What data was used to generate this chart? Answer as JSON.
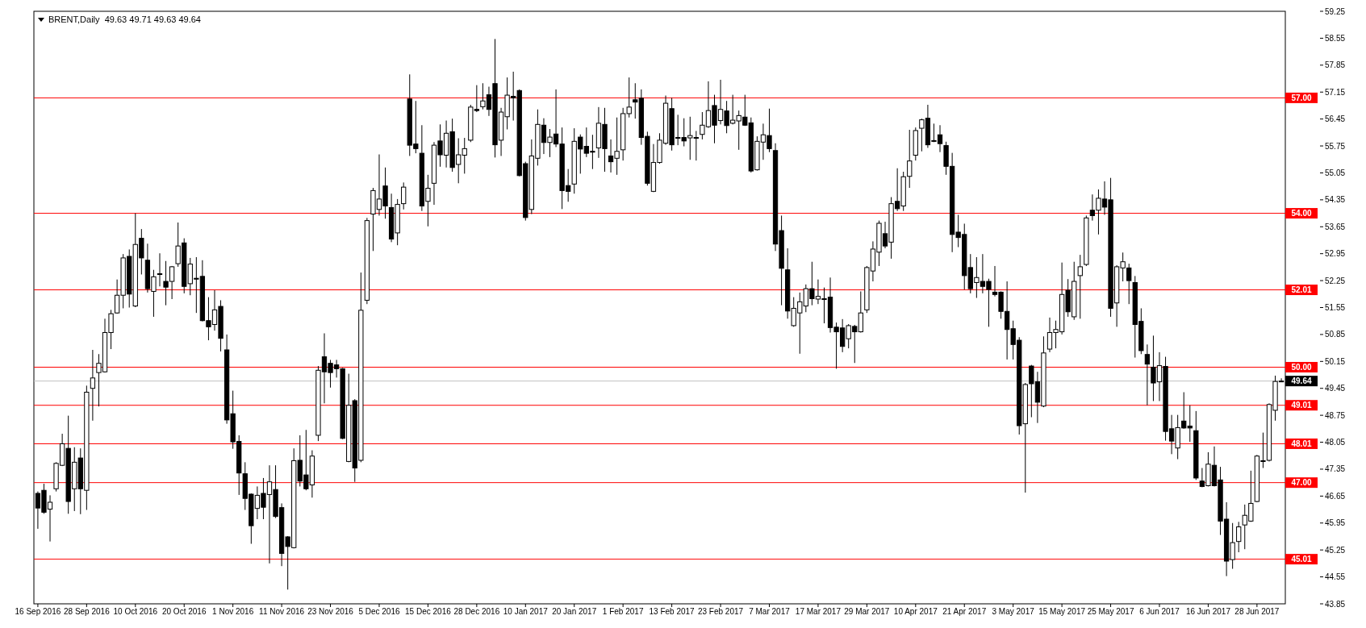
{
  "chart_data": {
    "type": "candlestick",
    "title": "BRENT,Daily  49.63 49.71 49.63 49.64",
    "categories": [
      "16 Sep 2016",
      null,
      null,
      null,
      null,
      null,
      null,
      null,
      "28 Sep 2016",
      null,
      null,
      null,
      null,
      null,
      null,
      null,
      "10 Oct 2016",
      null,
      null,
      null,
      null,
      null,
      null,
      null,
      "20 Oct 2016",
      null,
      null,
      null,
      null,
      null,
      null,
      null,
      "1 Nov 2016",
      null,
      null,
      null,
      null,
      null,
      null,
      null,
      "11 Nov 2016",
      null,
      null,
      null,
      null,
      null,
      null,
      null,
      "23 Nov 2016",
      null,
      null,
      null,
      null,
      null,
      null,
      null,
      "5 Dec 2016",
      null,
      null,
      null,
      null,
      null,
      null,
      null,
      "15 Dec 2016",
      null,
      null,
      null,
      null,
      null,
      null,
      null,
      "28 Dec 2016",
      null,
      null,
      null,
      null,
      null,
      null,
      null,
      "10 Jan 2017",
      null,
      null,
      null,
      null,
      null,
      null,
      null,
      "20 Jan 2017",
      null,
      null,
      null,
      null,
      null,
      null,
      null,
      "1 Feb 2017",
      null,
      null,
      null,
      null,
      null,
      null,
      null,
      "13 Feb 2017",
      null,
      null,
      null,
      null,
      null,
      null,
      null,
      "23 Feb 2017",
      null,
      null,
      null,
      null,
      null,
      null,
      null,
      "7 Mar 2017",
      null,
      null,
      null,
      null,
      null,
      null,
      null,
      "17 Mar 2017",
      null,
      null,
      null,
      null,
      null,
      null,
      null,
      "29 Mar 2017",
      null,
      null,
      null,
      null,
      null,
      null,
      null,
      "10 Apr 2017",
      null,
      null,
      null,
      null,
      null,
      null,
      null,
      "21 Apr 2017",
      null,
      null,
      null,
      null,
      null,
      null,
      null,
      "3 May 2017",
      null,
      null,
      null,
      null,
      null,
      null,
      null,
      "15 May 2017",
      null,
      null,
      null,
      null,
      null,
      null,
      null,
      "25 May 2017",
      null,
      null,
      null,
      null,
      null,
      null,
      null,
      "6 Jun 2017",
      null,
      null,
      null,
      null,
      null,
      null,
      null,
      "16 Jun 2017",
      null,
      null,
      null,
      null,
      null,
      null,
      null,
      "28 Jun 2017",
      null,
      null,
      null,
      null
    ],
    "ohlc": [
      [
        46.72,
        46.77,
        45.8,
        46.34
      ],
      [
        46.8,
        46.97,
        46.19,
        46.23
      ],
      [
        46.31,
        46.67,
        45.47,
        46.49
      ],
      [
        46.84,
        47.53,
        46.77,
        47.5
      ],
      [
        47.45,
        48.27,
        47.43,
        48.01
      ],
      [
        47.89,
        48.74,
        46.19,
        46.51
      ],
      [
        46.84,
        47.92,
        46.26,
        47.53
      ],
      [
        47.64,
        47.89,
        46.18,
        46.84
      ],
      [
        46.8,
        49.52,
        46.29,
        49.35
      ],
      [
        49.45,
        50.45,
        48.61,
        49.72
      ],
      [
        49.86,
        50.34,
        48.98,
        50.1
      ],
      [
        49.88,
        51.26,
        49.86,
        50.9
      ],
      [
        50.9,
        51.49,
        50.47,
        51.39
      ],
      [
        51.41,
        52.28,
        51.39,
        51.87
      ],
      [
        51.87,
        52.94,
        51.53,
        52.84
      ],
      [
        52.88,
        53.06,
        51.55,
        51.9
      ],
      [
        51.59,
        54.0,
        51.56,
        53.19
      ],
      [
        53.35,
        53.59,
        52.41,
        52.84
      ],
      [
        52.78,
        53.21,
        51.94,
        52.04
      ],
      [
        51.97,
        52.53,
        51.31,
        52.35
      ],
      [
        52.43,
        52.96,
        52.1,
        52.41
      ],
      [
        52.23,
        52.76,
        51.61,
        52.08
      ],
      [
        52.23,
        52.63,
        51.77,
        52.61
      ],
      [
        52.69,
        53.76,
        52.61,
        53.15
      ],
      [
        53.23,
        53.35,
        51.92,
        52.1
      ],
      [
        52.17,
        52.84,
        51.87,
        52.68
      ],
      [
        52.31,
        52.86,
        51.41,
        52.29
      ],
      [
        52.36,
        52.78,
        51.19,
        51.21
      ],
      [
        51.21,
        51.82,
        50.7,
        51.05
      ],
      [
        51.11,
        52.0,
        50.95,
        51.49
      ],
      [
        51.58,
        51.74,
        50.41,
        50.75
      ],
      [
        50.45,
        50.85,
        48.53,
        48.63
      ],
      [
        48.79,
        49.39,
        47.88,
        48.06
      ],
      [
        48.07,
        48.23,
        46.68,
        47.25
      ],
      [
        47.23,
        47.53,
        46.29,
        46.59
      ],
      [
        46.7,
        46.72,
        45.41,
        45.88
      ],
      [
        46.33,
        46.9,
        46.05,
        46.67
      ],
      [
        46.72,
        47.12,
        46.05,
        46.36
      ],
      [
        46.69,
        47.45,
        44.9,
        47.02
      ],
      [
        46.82,
        47.45,
        46.08,
        46.12
      ],
      [
        46.35,
        46.46,
        44.83,
        45.16
      ],
      [
        45.59,
        45.61,
        44.22,
        45.34
      ],
      [
        45.31,
        47.89,
        45.29,
        47.57
      ],
      [
        47.58,
        48.23,
        46.9,
        47.04
      ],
      [
        47.2,
        48.37,
        46.8,
        46.84
      ],
      [
        46.94,
        47.84,
        46.61,
        47.69
      ],
      [
        48.23,
        50.03,
        48.08,
        49.92
      ],
      [
        50.27,
        50.88,
        49.06,
        49.88
      ],
      [
        50.1,
        50.19,
        49.47,
        49.86
      ],
      [
        50.06,
        50.19,
        49.73,
        49.96
      ],
      [
        49.96,
        49.98,
        48.13,
        48.15
      ],
      [
        47.55,
        49.83,
        47.53,
        49.01
      ],
      [
        49.13,
        49.17,
        47.02,
        47.38
      ],
      [
        47.58,
        52.46,
        47.53,
        51.48
      ],
      [
        51.74,
        53.88,
        51.64,
        53.81
      ],
      [
        53.98,
        54.66,
        53.02,
        54.59
      ],
      [
        54.1,
        55.53,
        53.94,
        54.37
      ],
      [
        54.71,
        55.19,
        53.86,
        54.19
      ],
      [
        54.15,
        54.51,
        53.25,
        53.33
      ],
      [
        53.49,
        54.37,
        53.17,
        54.23
      ],
      [
        54.25,
        54.8,
        54.1,
        54.68
      ],
      [
        56.97,
        57.61,
        55.49,
        55.77
      ],
      [
        55.8,
        56.92,
        55.56,
        55.68
      ],
      [
        55.56,
        56.29,
        54.06,
        54.19
      ],
      [
        54.31,
        55.0,
        53.66,
        54.65
      ],
      [
        54.78,
        55.85,
        54.22,
        55.77
      ],
      [
        55.88,
        56.31,
        55.21,
        55.52
      ],
      [
        55.51,
        56.41,
        55.19,
        56.08
      ],
      [
        56.12,
        56.46,
        55.08,
        55.19
      ],
      [
        55.27,
        55.95,
        54.78,
        55.52
      ],
      [
        55.51,
        55.96,
        55.03,
        55.68
      ],
      [
        55.9,
        56.82,
        55.85,
        56.76
      ],
      [
        56.7,
        57.33,
        56.63,
        56.67
      ],
      [
        56.77,
        57.38,
        56.7,
        56.92
      ],
      [
        57.08,
        57.29,
        56.53,
        56.7
      ],
      [
        57.37,
        58.53,
        55.45,
        55.78
      ],
      [
        55.9,
        56.74,
        55.49,
        56.63
      ],
      [
        56.51,
        57.53,
        56.18,
        57.07
      ],
      [
        57.04,
        57.68,
        56.41,
        57.0
      ],
      [
        57.19,
        57.22,
        54.96,
        54.98
      ],
      [
        55.29,
        55.34,
        53.81,
        53.89
      ],
      [
        54.1,
        55.92,
        53.98,
        55.49
      ],
      [
        55.43,
        56.7,
        55.24,
        56.31
      ],
      [
        56.29,
        56.47,
        55.54,
        55.84
      ],
      [
        55.84,
        56.19,
        55.46,
        55.98
      ],
      [
        56.06,
        57.22,
        55.72,
        55.8
      ],
      [
        55.8,
        56.23,
        54.11,
        54.59
      ],
      [
        54.72,
        55.15,
        54.3,
        54.57
      ],
      [
        54.76,
        56.21,
        54.51,
        55.87
      ],
      [
        55.98,
        56.05,
        55.03,
        55.67
      ],
      [
        55.74,
        56.23,
        55.46,
        55.56
      ],
      [
        55.61,
        56.04,
        55.15,
        55.59
      ],
      [
        55.7,
        56.76,
        55.44,
        56.34
      ],
      [
        56.31,
        56.74,
        55.08,
        55.68
      ],
      [
        55.49,
        55.92,
        55.06,
        55.34
      ],
      [
        55.43,
        56.49,
        55.0,
        55.61
      ],
      [
        55.65,
        56.74,
        55.37,
        56.59
      ],
      [
        56.59,
        57.53,
        56.49,
        56.76
      ],
      [
        56.95,
        57.38,
        56.46,
        56.89
      ],
      [
        56.99,
        57.22,
        55.78,
        55.97
      ],
      [
        56.0,
        56.12,
        54.72,
        54.78
      ],
      [
        54.57,
        55.8,
        54.55,
        55.32
      ],
      [
        55.32,
        56.08,
        55.29,
        55.9
      ],
      [
        55.82,
        57.06,
        55.78,
        56.86
      ],
      [
        56.72,
        57.0,
        55.63,
        55.78
      ],
      [
        55.97,
        56.56,
        55.77,
        55.95
      ],
      [
        55.97,
        56.47,
        55.74,
        55.88
      ],
      [
        55.96,
        56.51,
        55.39,
        56.02
      ],
      [
        55.97,
        56.14,
        55.37,
        55.95
      ],
      [
        56.05,
        56.63,
        55.92,
        56.29
      ],
      [
        56.25,
        57.43,
        56.22,
        56.67
      ],
      [
        56.8,
        57.08,
        55.82,
        56.29
      ],
      [
        56.41,
        57.47,
        56.31,
        56.7
      ],
      [
        56.66,
        56.92,
        56.08,
        56.28
      ],
      [
        56.34,
        57.08,
        56.31,
        56.42
      ],
      [
        56.4,
        56.67,
        55.65,
        56.54
      ],
      [
        56.5,
        57.08,
        56.27,
        56.29
      ],
      [
        56.35,
        56.49,
        55.06,
        55.1
      ],
      [
        55.13,
        56.0,
        55.11,
        55.87
      ],
      [
        55.85,
        56.33,
        55.39,
        56.04
      ],
      [
        56.02,
        56.72,
        55.59,
        55.68
      ],
      [
        55.63,
        55.82,
        53.02,
        53.2
      ],
      [
        53.55,
        53.94,
        51.61,
        52.57
      ],
      [
        52.53,
        53.09,
        51.26,
        51.46
      ],
      [
        51.08,
        51.82,
        51.05,
        51.53
      ],
      [
        51.41,
        51.94,
        50.35,
        51.7
      ],
      [
        51.59,
        52.15,
        51.43,
        52.04
      ],
      [
        52.04,
        52.74,
        51.61,
        51.78
      ],
      [
        51.77,
        52.28,
        51.64,
        51.84
      ],
      [
        51.78,
        52.07,
        51.14,
        51.76
      ],
      [
        51.82,
        52.33,
        50.9,
        51.03
      ],
      [
        51.04,
        51.16,
        49.96,
        50.92
      ],
      [
        51.02,
        51.25,
        50.39,
        50.54
      ],
      [
        50.74,
        51.12,
        50.49,
        51.08
      ],
      [
        51.06,
        51.1,
        50.11,
        50.92
      ],
      [
        50.92,
        51.97,
        50.9,
        51.41
      ],
      [
        51.49,
        52.63,
        51.41,
        52.59
      ],
      [
        52.5,
        53.27,
        52.23,
        53.07
      ],
      [
        52.99,
        53.81,
        52.63,
        53.74
      ],
      [
        53.47,
        53.78,
        53.09,
        53.15
      ],
      [
        53.25,
        54.42,
        52.82,
        54.25
      ],
      [
        54.31,
        55.17,
        54.06,
        54.12
      ],
      [
        54.19,
        55.08,
        54.06,
        54.95
      ],
      [
        54.96,
        56.17,
        54.66,
        55.36
      ],
      [
        55.51,
        56.23,
        55.37,
        56.15
      ],
      [
        56.21,
        56.46,
        55.61,
        56.43
      ],
      [
        56.47,
        56.82,
        55.7,
        55.78
      ],
      [
        55.89,
        56.33,
        55.85,
        55.87
      ],
      [
        56.04,
        56.29,
        55.59,
        55.81
      ],
      [
        55.76,
        55.86,
        55.0,
        55.22
      ],
      [
        55.22,
        55.57,
        52.99,
        53.45
      ],
      [
        53.51,
        53.96,
        53.12,
        53.37
      ],
      [
        53.45,
        53.73,
        52.02,
        52.38
      ],
      [
        52.59,
        52.94,
        51.92,
        52.04
      ],
      [
        52.2,
        52.86,
        51.8,
        52.33
      ],
      [
        52.23,
        52.94,
        51.92,
        52.1
      ],
      [
        52.23,
        52.3,
        51.05,
        52.02
      ],
      [
        51.95,
        52.63,
        51.84,
        51.89
      ],
      [
        51.95,
        51.97,
        51.26,
        51.45
      ],
      [
        51.45,
        52.23,
        50.2,
        50.98
      ],
      [
        51.0,
        51.21,
        50.2,
        50.59
      ],
      [
        50.7,
        50.78,
        48.25,
        48.48
      ],
      [
        48.53,
        49.59,
        46.74,
        49.55
      ],
      [
        50.03,
        50.06,
        48.7,
        49.57
      ],
      [
        49.62,
        49.88,
        48.55,
        49.09
      ],
      [
        48.99,
        50.8,
        48.96,
        50.37
      ],
      [
        50.47,
        51.29,
        50.39,
        50.9
      ],
      [
        50.9,
        51.21,
        50.49,
        50.98
      ],
      [
        50.92,
        52.72,
        50.85,
        51.89
      ],
      [
        52.0,
        52.29,
        51.31,
        51.44
      ],
      [
        51.31,
        52.74,
        51.23,
        52.23
      ],
      [
        52.38,
        52.92,
        51.26,
        52.61
      ],
      [
        52.67,
        53.94,
        52.63,
        53.88
      ],
      [
        54.08,
        54.49,
        53.81,
        53.94
      ],
      [
        54.08,
        54.62,
        53.45,
        54.39
      ],
      [
        54.37,
        54.83,
        53.96,
        54.16
      ],
      [
        54.35,
        54.92,
        51.31,
        51.53
      ],
      [
        51.67,
        52.65,
        51.05,
        52.61
      ],
      [
        52.58,
        52.98,
        52.23,
        52.74
      ],
      [
        52.58,
        52.69,
        51.64,
        52.25
      ],
      [
        52.2,
        52.37,
        50.25,
        51.11
      ],
      [
        51.19,
        51.53,
        50.34,
        50.43
      ],
      [
        50.33,
        50.59,
        49.01,
        50.08
      ],
      [
        50.0,
        50.82,
        49.12,
        49.59
      ],
      [
        49.62,
        50.39,
        49.12,
        50.04
      ],
      [
        50.02,
        50.27,
        48.09,
        48.33
      ],
      [
        48.4,
        48.76,
        47.74,
        48.08
      ],
      [
        47.9,
        48.76,
        47.61,
        48.43
      ],
      [
        48.6,
        49.35,
        48.4,
        48.42
      ],
      [
        48.47,
        49.01,
        48.06,
        48.42
      ],
      [
        48.35,
        48.86,
        47.07,
        47.12
      ],
      [
        47.04,
        47.38,
        46.88,
        46.9
      ],
      [
        46.92,
        47.79,
        46.9,
        47.48
      ],
      [
        47.45,
        47.94,
        46.9,
        46.92
      ],
      [
        47.07,
        47.41,
        45.64,
        46.0
      ],
      [
        46.05,
        46.49,
        44.57,
        44.96
      ],
      [
        45.0,
        45.95,
        44.76,
        45.44
      ],
      [
        45.47,
        45.98,
        45.19,
        45.85
      ],
      [
        45.9,
        46.43,
        45.27,
        46.15
      ],
      [
        46.0,
        47.31,
        45.98,
        46.46
      ],
      [
        46.51,
        47.72,
        46.49,
        47.69
      ],
      [
        47.57,
        48.3,
        47.38,
        47.55
      ],
      [
        47.58,
        49.06,
        47.55,
        49.03
      ],
      [
        48.88,
        49.78,
        48.61,
        49.63
      ],
      [
        49.63,
        49.71,
        49.63,
        49.64
      ]
    ],
    "ylim": [
      43.85,
      59.25
    ],
    "yticks": [
      59.25,
      58.55,
      57.85,
      57.15,
      56.45,
      55.75,
      55.05,
      54.35,
      53.65,
      52.95,
      52.25,
      51.55,
      50.85,
      50.15,
      49.45,
      48.75,
      48.05,
      47.35,
      46.65,
      45.95,
      45.25,
      44.55,
      43.85
    ],
    "ref_lines": [
      {
        "axis": "y",
        "value": 57.0,
        "label": "57.00",
        "color": "#ff0000"
      },
      {
        "axis": "y",
        "value": 54.0,
        "label": "54.00",
        "color": "#ff0000"
      },
      {
        "axis": "y",
        "value": 52.01,
        "label": "52.01",
        "color": "#ff0000"
      },
      {
        "axis": "y",
        "value": 50.0,
        "label": "50.00",
        "color": "#ff0000"
      },
      {
        "axis": "y",
        "value": 49.64,
        "label": "49.64",
        "color": "#c0c0c0"
      },
      {
        "axis": "y",
        "value": 49.01,
        "label": "49.01",
        "color": "#ff0000"
      },
      {
        "axis": "y",
        "value": 48.01,
        "label": "48.01",
        "color": "#ff0000"
      },
      {
        "axis": "y",
        "value": 47.0,
        "label": "47.00",
        "color": "#ff0000"
      },
      {
        "axis": "y",
        "value": 45.01,
        "label": "45.01",
        "color": "#ff0000"
      }
    ]
  }
}
